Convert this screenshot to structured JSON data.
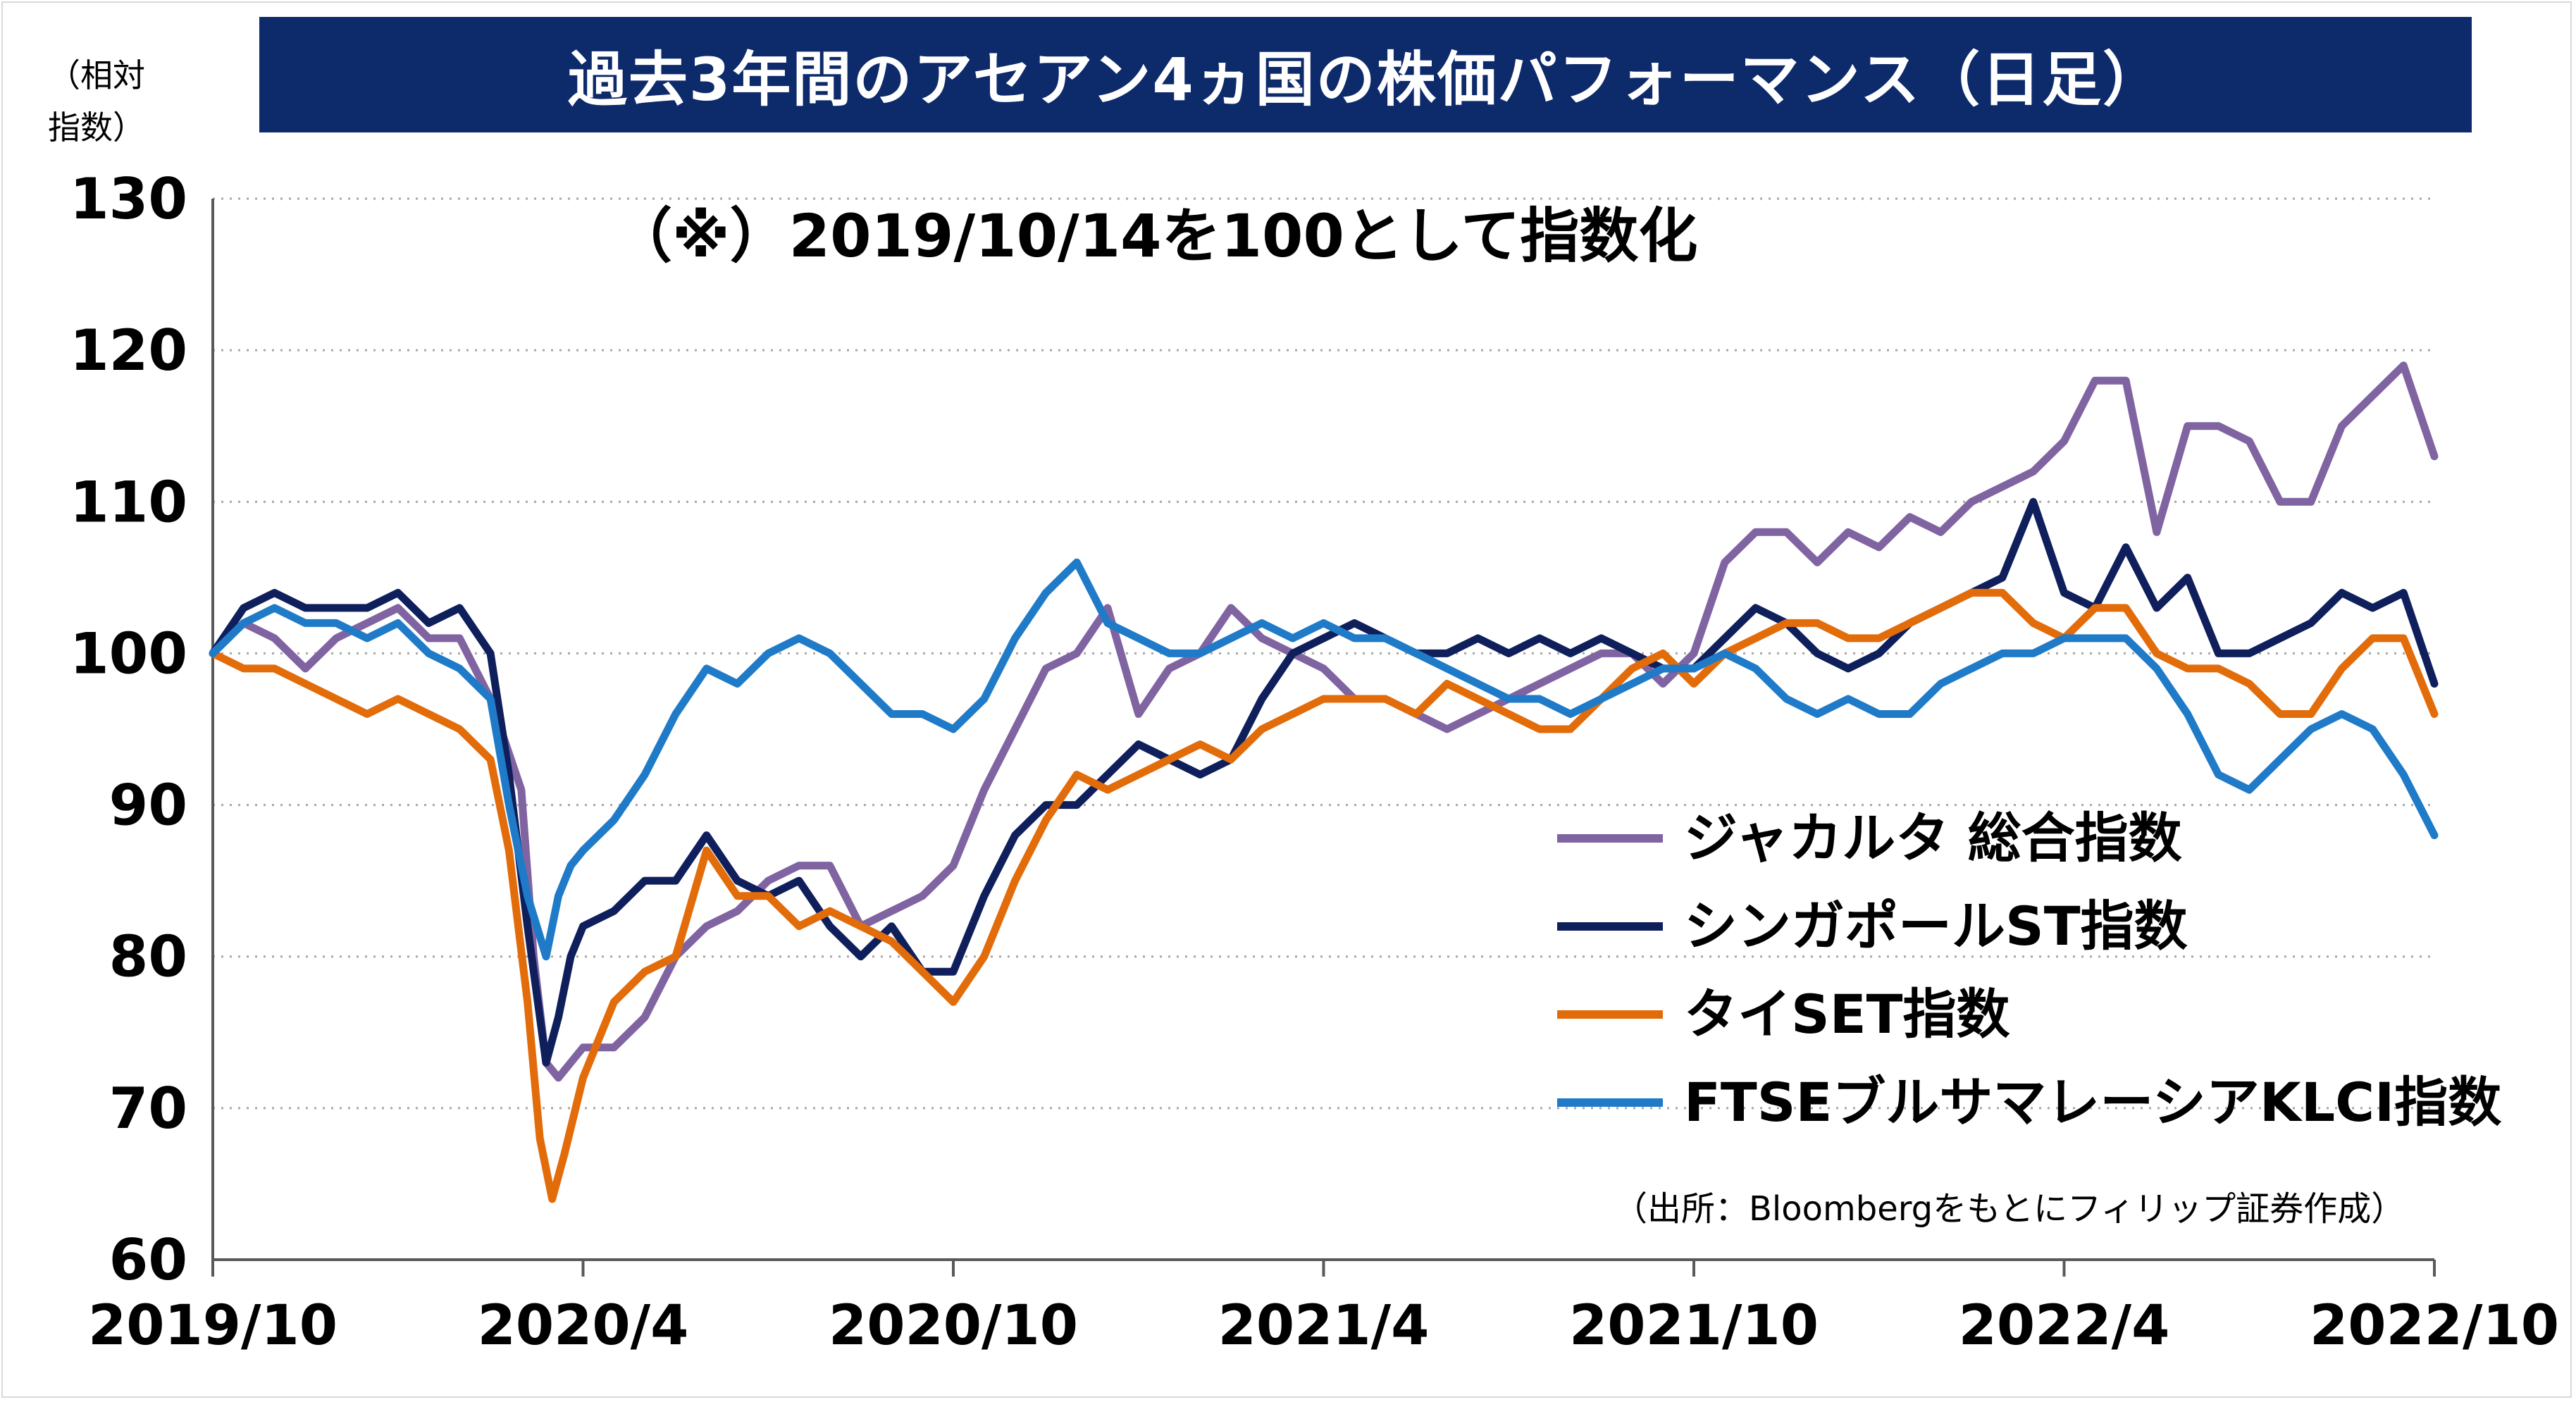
{
  "title": "過去3年間のアセアン4ヵ国の株価パフォーマンス（日足）",
  "note": "（※）2019/10/14を100として指数化",
  "source": "（出所：Bloombergをもとにフィリップ証券作成）",
  "yunit": [
    "（相対",
    "指数）"
  ],
  "chart_data": {
    "type": "line",
    "title": "過去3年間のアセアン4ヵ国の株価パフォーマンス（日足）",
    "ylim": [
      60,
      130
    ],
    "yticks": [
      60,
      70,
      80,
      90,
      100,
      110,
      120,
      130
    ],
    "xlim": [
      0,
      36
    ],
    "xticks": [
      {
        "pos": 0,
        "label": "2019/10"
      },
      {
        "pos": 6,
        "label": "2020/4"
      },
      {
        "pos": 12,
        "label": "2020/10"
      },
      {
        "pos": 18,
        "label": "2021/4"
      },
      {
        "pos": 24,
        "label": "2021/10"
      },
      {
        "pos": 30,
        "label": "2022/4"
      },
      {
        "pos": 36,
        "label": "2022/10"
      }
    ],
    "grid": "horizontal dotted",
    "legend_position": "bottom-right",
    "series": [
      {
        "name": "ジャカルタ 総合指数",
        "color": "#8064a2",
        "points": [
          [
            0,
            100
          ],
          [
            0.5,
            102
          ],
          [
            1,
            101
          ],
          [
            1.5,
            99
          ],
          [
            2,
            101
          ],
          [
            2.5,
            102
          ],
          [
            3,
            103
          ],
          [
            3.5,
            101
          ],
          [
            4,
            101
          ],
          [
            4.5,
            97
          ],
          [
            5,
            91
          ],
          [
            5.2,
            80
          ],
          [
            5.4,
            73
          ],
          [
            5.6,
            72
          ],
          [
            5.8,
            73
          ],
          [
            6,
            74
          ],
          [
            6.5,
            74
          ],
          [
            7,
            76
          ],
          [
            7.5,
            80
          ],
          [
            8,
            82
          ],
          [
            8.5,
            83
          ],
          [
            9,
            85
          ],
          [
            9.5,
            86
          ],
          [
            10,
            86
          ],
          [
            10.5,
            82
          ],
          [
            11,
            83
          ],
          [
            11.5,
            84
          ],
          [
            12,
            86
          ],
          [
            12.5,
            91
          ],
          [
            13,
            95
          ],
          [
            13.5,
            99
          ],
          [
            14,
            100
          ],
          [
            14.5,
            103
          ],
          [
            15,
            96
          ],
          [
            15.5,
            99
          ],
          [
            16,
            100
          ],
          [
            16.5,
            103
          ],
          [
            17,
            101
          ],
          [
            17.5,
            100
          ],
          [
            18,
            99
          ],
          [
            18.5,
            97
          ],
          [
            19,
            97
          ],
          [
            19.5,
            96
          ],
          [
            20,
            95
          ],
          [
            20.5,
            96
          ],
          [
            21,
            97
          ],
          [
            21.5,
            98
          ],
          [
            22,
            99
          ],
          [
            22.5,
            100
          ],
          [
            23,
            100
          ],
          [
            23.5,
            98
          ],
          [
            24,
            100
          ],
          [
            24.5,
            106
          ],
          [
            25,
            108
          ],
          [
            25.5,
            108
          ],
          [
            26,
            106
          ],
          [
            26.5,
            108
          ],
          [
            27,
            107
          ],
          [
            27.5,
            109
          ],
          [
            28,
            108
          ],
          [
            28.5,
            110
          ],
          [
            29,
            111
          ],
          [
            29.5,
            112
          ],
          [
            30,
            114
          ],
          [
            30.5,
            118
          ],
          [
            31,
            118
          ],
          [
            31.5,
            108
          ],
          [
            32,
            115
          ],
          [
            32.5,
            115
          ],
          [
            33,
            114
          ],
          [
            33.5,
            110
          ],
          [
            34,
            110
          ],
          [
            34.5,
            115
          ],
          [
            35,
            117
          ],
          [
            35.5,
            119
          ],
          [
            36,
            113
          ]
        ]
      },
      {
        "name": "シンガポールST指数",
        "color": "#0f1f5c",
        "points": [
          [
            0,
            100
          ],
          [
            0.5,
            103
          ],
          [
            1,
            104
          ],
          [
            1.5,
            103
          ],
          [
            2,
            103
          ],
          [
            2.5,
            103
          ],
          [
            3,
            104
          ],
          [
            3.5,
            102
          ],
          [
            4,
            103
          ],
          [
            4.5,
            100
          ],
          [
            4.8,
            92
          ],
          [
            5.1,
            82
          ],
          [
            5.4,
            73
          ],
          [
            5.6,
            76
          ],
          [
            5.8,
            80
          ],
          [
            6,
            82
          ],
          [
            6.5,
            83
          ],
          [
            7,
            85
          ],
          [
            7.5,
            85
          ],
          [
            8,
            88
          ],
          [
            8.5,
            85
          ],
          [
            9,
            84
          ],
          [
            9.5,
            85
          ],
          [
            10,
            82
          ],
          [
            10.5,
            80
          ],
          [
            11,
            82
          ],
          [
            11.5,
            79
          ],
          [
            12,
            79
          ],
          [
            12.5,
            84
          ],
          [
            13,
            88
          ],
          [
            13.5,
            90
          ],
          [
            14,
            90
          ],
          [
            14.5,
            92
          ],
          [
            15,
            94
          ],
          [
            15.5,
            93
          ],
          [
            16,
            92
          ],
          [
            16.5,
            93
          ],
          [
            17,
            97
          ],
          [
            17.5,
            100
          ],
          [
            18,
            101
          ],
          [
            18.5,
            102
          ],
          [
            19,
            101
          ],
          [
            19.5,
            100
          ],
          [
            20,
            100
          ],
          [
            20.5,
            101
          ],
          [
            21,
            100
          ],
          [
            21.5,
            101
          ],
          [
            22,
            100
          ],
          [
            22.5,
            101
          ],
          [
            23,
            100
          ],
          [
            23.5,
            99
          ],
          [
            24,
            99
          ],
          [
            24.5,
            101
          ],
          [
            25,
            103
          ],
          [
            25.5,
            102
          ],
          [
            26,
            100
          ],
          [
            26.5,
            99
          ],
          [
            27,
            100
          ],
          [
            27.5,
            102
          ],
          [
            28,
            103
          ],
          [
            28.5,
            104
          ],
          [
            29,
            105
          ],
          [
            29.5,
            110
          ],
          [
            30,
            104
          ],
          [
            30.5,
            103
          ],
          [
            31,
            107
          ],
          [
            31.5,
            103
          ],
          [
            32,
            105
          ],
          [
            32.5,
            100
          ],
          [
            33,
            100
          ],
          [
            33.5,
            101
          ],
          [
            34,
            102
          ],
          [
            34.5,
            104
          ],
          [
            35,
            103
          ],
          [
            35.5,
            104
          ],
          [
            36,
            98
          ]
        ]
      },
      {
        "name": "タイSET指数",
        "color": "#e36c0a",
        "points": [
          [
            0,
            100
          ],
          [
            0.5,
            99
          ],
          [
            1,
            99
          ],
          [
            1.5,
            98
          ],
          [
            2,
            97
          ],
          [
            2.5,
            96
          ],
          [
            3,
            97
          ],
          [
            3.5,
            96
          ],
          [
            4,
            95
          ],
          [
            4.5,
            93
          ],
          [
            4.8,
            87
          ],
          [
            5.1,
            77
          ],
          [
            5.3,
            68
          ],
          [
            5.5,
            64
          ],
          [
            5.7,
            67
          ],
          [
            6,
            72
          ],
          [
            6.5,
            77
          ],
          [
            7,
            79
          ],
          [
            7.5,
            80
          ],
          [
            8,
            87
          ],
          [
            8.5,
            84
          ],
          [
            9,
            84
          ],
          [
            9.5,
            82
          ],
          [
            10,
            83
          ],
          [
            10.5,
            82
          ],
          [
            11,
            81
          ],
          [
            11.5,
            79
          ],
          [
            12,
            77
          ],
          [
            12.5,
            80
          ],
          [
            13,
            85
          ],
          [
            13.5,
            89
          ],
          [
            14,
            92
          ],
          [
            14.5,
            91
          ],
          [
            15,
            92
          ],
          [
            15.5,
            93
          ],
          [
            16,
            94
          ],
          [
            16.5,
            93
          ],
          [
            17,
            95
          ],
          [
            17.5,
            96
          ],
          [
            18,
            97
          ],
          [
            18.5,
            97
          ],
          [
            19,
            97
          ],
          [
            19.5,
            96
          ],
          [
            20,
            98
          ],
          [
            20.5,
            97
          ],
          [
            21,
            96
          ],
          [
            21.5,
            95
          ],
          [
            22,
            95
          ],
          [
            22.5,
            97
          ],
          [
            23,
            99
          ],
          [
            23.5,
            100
          ],
          [
            24,
            98
          ],
          [
            24.5,
            100
          ],
          [
            25,
            101
          ],
          [
            25.5,
            102
          ],
          [
            26,
            102
          ],
          [
            26.5,
            101
          ],
          [
            27,
            101
          ],
          [
            27.5,
            102
          ],
          [
            28,
            103
          ],
          [
            28.5,
            104
          ],
          [
            29,
            104
          ],
          [
            29.5,
            102
          ],
          [
            30,
            101
          ],
          [
            30.5,
            103
          ],
          [
            31,
            103
          ],
          [
            31.5,
            100
          ],
          [
            32,
            99
          ],
          [
            32.5,
            99
          ],
          [
            33,
            98
          ],
          [
            33.5,
            96
          ],
          [
            34,
            96
          ],
          [
            34.5,
            99
          ],
          [
            35,
            101
          ],
          [
            35.5,
            101
          ],
          [
            36,
            96
          ]
        ]
      },
      {
        "name": "FTSEブルサマレーシアKLCI指数",
        "color": "#1f7bc8",
        "points": [
          [
            0,
            100
          ],
          [
            0.5,
            102
          ],
          [
            1,
            103
          ],
          [
            1.5,
            102
          ],
          [
            2,
            102
          ],
          [
            2.5,
            101
          ],
          [
            3,
            102
          ],
          [
            3.5,
            100
          ],
          [
            4,
            99
          ],
          [
            4.5,
            97
          ],
          [
            4.8,
            90
          ],
          [
            5.1,
            84
          ],
          [
            5.4,
            80
          ],
          [
            5.6,
            84
          ],
          [
            5.8,
            86
          ],
          [
            6,
            87
          ],
          [
            6.5,
            89
          ],
          [
            7,
            92
          ],
          [
            7.5,
            96
          ],
          [
            8,
            99
          ],
          [
            8.5,
            98
          ],
          [
            9,
            100
          ],
          [
            9.5,
            101
          ],
          [
            10,
            100
          ],
          [
            10.5,
            98
          ],
          [
            11,
            96
          ],
          [
            11.5,
            96
          ],
          [
            12,
            95
          ],
          [
            12.5,
            97
          ],
          [
            13,
            101
          ],
          [
            13.5,
            104
          ],
          [
            14,
            106
          ],
          [
            14.5,
            102
          ],
          [
            15,
            101
          ],
          [
            15.5,
            100
          ],
          [
            16,
            100
          ],
          [
            16.5,
            101
          ],
          [
            17,
            102
          ],
          [
            17.5,
            101
          ],
          [
            18,
            102
          ],
          [
            18.5,
            101
          ],
          [
            19,
            101
          ],
          [
            19.5,
            100
          ],
          [
            20,
            99
          ],
          [
            20.5,
            98
          ],
          [
            21,
            97
          ],
          [
            21.5,
            97
          ],
          [
            22,
            96
          ],
          [
            22.5,
            97
          ],
          [
            23,
            98
          ],
          [
            23.5,
            99
          ],
          [
            24,
            99
          ],
          [
            24.5,
            100
          ],
          [
            25,
            99
          ],
          [
            25.5,
            97
          ],
          [
            26,
            96
          ],
          [
            26.5,
            97
          ],
          [
            27,
            96
          ],
          [
            27.5,
            96
          ],
          [
            28,
            98
          ],
          [
            28.5,
            99
          ],
          [
            29,
            100
          ],
          [
            29.5,
            100
          ],
          [
            30,
            101
          ],
          [
            30.5,
            101
          ],
          [
            31,
            101
          ],
          [
            31.5,
            99
          ],
          [
            32,
            96
          ],
          [
            32.5,
            92
          ],
          [
            33,
            91
          ],
          [
            33.5,
            93
          ],
          [
            34,
            95
          ],
          [
            34.5,
            96
          ],
          [
            35,
            95
          ],
          [
            35.5,
            92
          ],
          [
            36,
            88
          ]
        ]
      }
    ]
  }
}
